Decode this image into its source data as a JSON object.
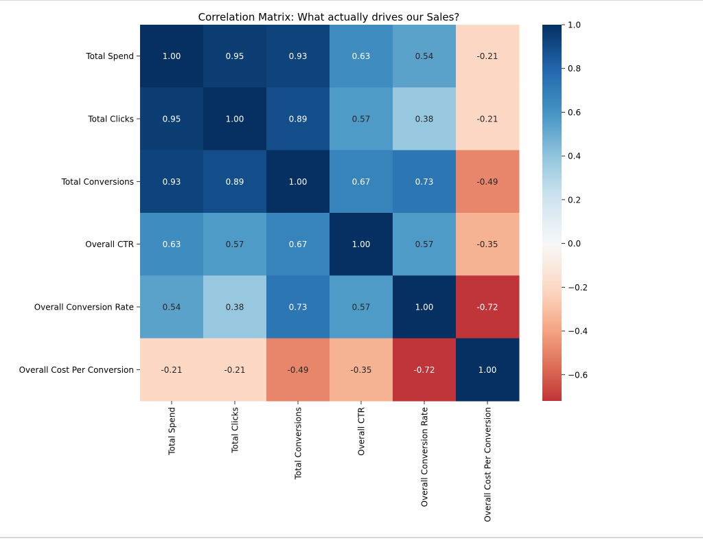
{
  "chart_data": {
    "type": "heatmap",
    "title": "Correlation Matrix: What actually drives our Sales?",
    "row_labels": [
      "Total Spend",
      "Total Clicks",
      "Total Conversions",
      "Overall CTR",
      "Overall Conversion Rate",
      "Overall Cost Per Conversion"
    ],
    "col_labels": [
      "Total Spend",
      "Total Clicks",
      "Total Conversions",
      "Overall CTR",
      "Overall Conversion Rate",
      "Overall Cost Per Conversion"
    ],
    "values": [
      [
        1.0,
        0.95,
        0.93,
        0.63,
        0.54,
        -0.21
      ],
      [
        0.95,
        1.0,
        0.89,
        0.57,
        0.38,
        -0.21
      ],
      [
        0.93,
        0.89,
        1.0,
        0.67,
        0.73,
        -0.49
      ],
      [
        0.63,
        0.57,
        0.67,
        1.0,
        0.57,
        -0.35
      ],
      [
        0.54,
        0.38,
        0.73,
        0.57,
        1.0,
        -0.72
      ],
      [
        -0.21,
        -0.21,
        -0.49,
        -0.35,
        -0.72,
        1.0
      ]
    ],
    "colormap": "RdBu",
    "colorbar": {
      "vmin": -0.72,
      "vmax": 1.0,
      "ticks": [
        1.0,
        0.8,
        0.6,
        0.4,
        0.2,
        0.0,
        -0.2,
        -0.4,
        -0.6
      ],
      "tick_labels": [
        "1.0",
        "0.8",
        "0.6",
        "0.4",
        "0.2",
        "0.0",
        "−0.2",
        "−0.4",
        "−0.6"
      ]
    },
    "annotations": true,
    "annotation_format": "0.00",
    "xlabel": "",
    "ylabel": "",
    "grid": false
  }
}
